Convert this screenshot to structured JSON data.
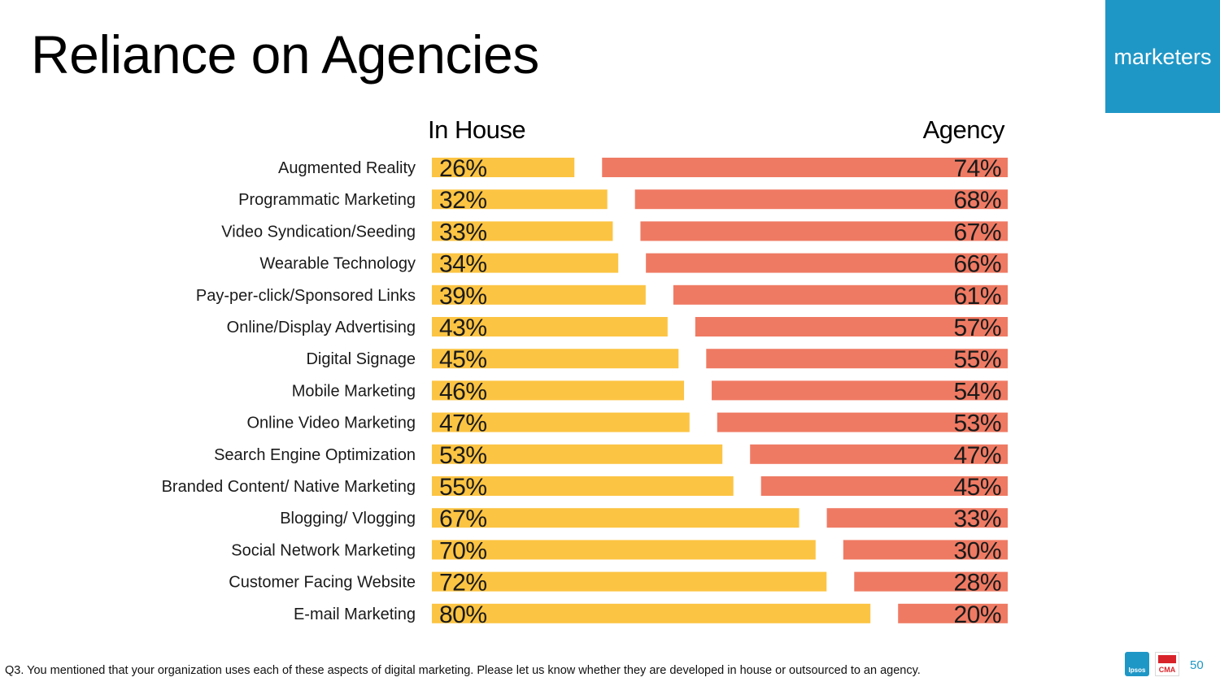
{
  "slide": {
    "title": "Reliance on Agencies",
    "badge": "marketers",
    "footnote": "Q3. You mentioned that your organization uses each of these aspects of digital marketing. Please let us know whether they are developed in house or outsourced to an agency.",
    "page_number": "50",
    "logos": {
      "left": "Ipsos",
      "right": "CMA"
    }
  },
  "colors": {
    "in_house": "#fcc443",
    "agency": "#ef7a63",
    "badge": "#1f97c6"
  },
  "chart_data": {
    "type": "bar",
    "orientation": "horizontal-stacked-100",
    "column_headers": [
      "In House",
      "Agency"
    ],
    "categories": [
      "Augmented Reality",
      "Programmatic Marketing",
      "Video Syndication/Seeding",
      "Wearable Technology",
      "Pay-per-click/Sponsored Links",
      "Online/Display Advertising",
      "Digital Signage",
      "Mobile Marketing",
      "Online Video Marketing",
      "Search Engine Optimization",
      "Branded Content/ Native Marketing",
      "Blogging/ Vlogging",
      "Social Network Marketing",
      "Customer Facing Website",
      "E-mail Marketing"
    ],
    "series": [
      {
        "name": "In House",
        "values": [
          26,
          32,
          33,
          34,
          39,
          43,
          45,
          46,
          47,
          53,
          55,
          67,
          70,
          72,
          80
        ]
      },
      {
        "name": "Agency",
        "values": [
          74,
          68,
          67,
          66,
          61,
          57,
          55,
          54,
          53,
          47,
          45,
          33,
          30,
          28,
          20
        ]
      }
    ],
    "value_suffix": "%",
    "xlim": [
      0,
      100
    ]
  }
}
